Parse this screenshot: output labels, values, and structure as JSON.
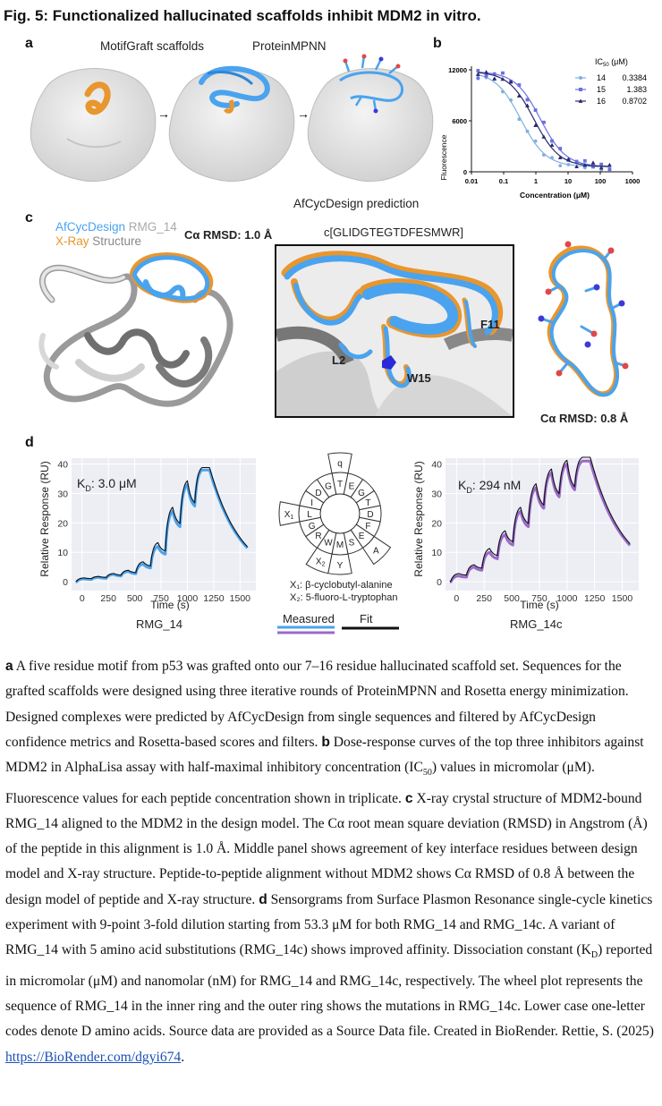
{
  "figure": {
    "title": "Fig. 5: Functionalized hallucinated scaffolds inhibit MDM2 in vitro."
  },
  "panel_a": {
    "label": "a",
    "step1": "MotifGraft scaffolds",
    "step2": "ProteinMPNN",
    "step3": "AfCycDesign prediction",
    "arrow": "→"
  },
  "panel_b": {
    "label": "b",
    "legend_header": "IC",
    "legend_header_sub": "50",
    "legend_header_unit": " (μM)",
    "ylabel": "Fluorescence",
    "xlabel": "Concentration (μM)",
    "yticks": [
      "0",
      "6000",
      "12000"
    ],
    "xticks": [
      "0.01",
      "0.1",
      "1",
      "10",
      "100",
      "1000"
    ],
    "series": [
      {
        "name": "14",
        "ic50": "0.3384",
        "color": "#7fb0e0",
        "marker": "circle"
      },
      {
        "name": "15",
        "ic50": "1.383",
        "color": "#6b6fe0",
        "marker": "square"
      },
      {
        "name": "16",
        "ic50": "0.8702",
        "color": "#2a2a6e",
        "marker": "triangle"
      }
    ]
  },
  "panel_c": {
    "label": "c",
    "legend_afcyc": "AfCycDesign",
    "legend_rmg": "RMG_14",
    "legend_xray": "X-Ray",
    "legend_structure": "Structure",
    "rmsd1": "Cα RMSD: 1.0 Å",
    "sequence": "c[GLIDGTEGTDFESMWR]",
    "res_l2": "L2",
    "res_w15": "W15",
    "res_f11": "F11",
    "rmsd2": "Cα RMSD: 0.8 Å",
    "colors": {
      "afcyc": "#4aa3ee",
      "xray": "#e8962e"
    }
  },
  "panel_d": {
    "label": "d",
    "left": {
      "kd": "K",
      "kd_sub": "D",
      "kd_value": ": 3.0 μM",
      "ylabel": "Relative Response (RU)",
      "xlabel": "Time (s)",
      "name": "RMG_14",
      "yticks": [
        "0",
        "10",
        "20",
        "30",
        "40"
      ],
      "xticks": [
        "0",
        "250",
        "500",
        "750",
        "1000",
        "1250",
        "1500"
      ]
    },
    "right": {
      "kd": "K",
      "kd_sub": "D",
      "kd_value": ": 294 nM",
      "ylabel": "Relative Response (RU)",
      "xlabel": "Time (s)",
      "name": "RMG_14c",
      "yticks": [
        "0",
        "10",
        "20",
        "30",
        "40"
      ],
      "xticks": [
        "0",
        "250",
        "500",
        "750",
        "1000",
        "1250",
        "1500"
      ]
    },
    "wheel": {
      "inner": [
        "T",
        "E",
        "G",
        "T",
        "D",
        "F",
        "E",
        "S",
        "M",
        "W",
        "R",
        "G",
        "L",
        "I",
        "D",
        "G"
      ],
      "outer": [
        "q",
        "",
        "",
        "",
        "",
        "",
        "A",
        "",
        "Y",
        "X2",
        "",
        "",
        "X1",
        "",
        "",
        ""
      ],
      "note1": "X₁: β-cyclobutyl-alanine",
      "note2": "X₂: 5-fluoro-L-tryptophan"
    },
    "legend_measured": "Measured",
    "legend_fit": "Fit",
    "colors": {
      "measured_14": "#4aa3ee",
      "measured_14c": "#9a6ac8",
      "fit": "#111111",
      "plot_bg": "#eceef4"
    }
  },
  "caption": {
    "a_label": "a",
    "a_text": " A five residue motif from p53 was grafted onto our 7–16 residue hallucinated scaffold set. Sequences for the grafted scaffolds were designed using three iterative rounds of ProteinMPNN and Rosetta energy minimization. Designed complexes were predicted by AfCycDesign from single sequences and filtered by AfCycDesign confidence metrics and Rosetta-based scores and filters. ",
    "b_label": "b",
    "b_text1": " Dose-response curves of the top three inhibitors against MDM2 in AlphaLisa assay with half-maximal inhibitory concentration (IC",
    "b_sub": "50",
    "b_text2": ") values in micromolar (μM). Fluorescence values for each peptide concentration shown in triplicate. ",
    "c_label": "c",
    "c_text": " X-ray crystal structure of MDM2-bound RMG_14 aligned to the MDM2 in the design model. The Cα root mean square deviation (RMSD) in Angstrom (Å) of the peptide in this alignment is 1.0 Å. Middle panel shows agreement of key interface residues between design model and X-ray structure. Peptide-to-peptide alignment without MDM2 shows Cα RMSD of 0.8 Å between the design model of peptide and X-ray structure. ",
    "d_label": "d",
    "d_text1": " Sensorgrams from Surface Plasmon Resonance single-cycle kinetics experiment with 9-point 3-fold dilution starting from 53.3 μM for both RMG_14 and RMG_14c. A variant of RMG_14 with 5 amino acid substitutions (RMG_14c) shows improved affinity. Dissociation constant (K",
    "d_sub": "D",
    "d_text2": ") reported in micromolar (μM) and nanomolar (nM) for RMG_14 and RMG_14c, respectively. The wheel plot represents the sequence of RMG_14 in the inner ring and the outer ring shows the mutations in RMG_14c. Lower case one-letter codes denote D amino acids. Source data are provided as a Source Data file. Created in BioRender. Rettie, S. (2025) ",
    "link": "https://BioRender.com/dgyi674",
    "end": "."
  }
}
